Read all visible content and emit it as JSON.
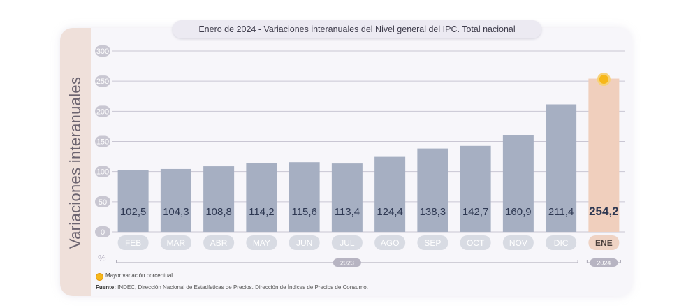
{
  "title": "Enero de 2024 - Variaciones interanuales del Nivel general del IPC. Total nacional",
  "y_axis_label": "Variaciones interanuales",
  "unit_symbol": "%",
  "legend_label": "Mayor variación porcentual",
  "source_label": "Fuente:",
  "source_text": "INDEC, Dirección Nacional de Estadísticas de Precios. Dirección de Índices de Precios de Consumo.",
  "colors": {
    "bar": "#a6afc2",
    "highlight_bar": "#f0cfbd",
    "highlight_dot": "#f6b71a",
    "pill": "#d8dbe3",
    "highlight_pill": "#efd3c4",
    "value_text": "#2e3852"
  },
  "chart_data": {
    "type": "bar",
    "categories": [
      "FEB",
      "MAR",
      "ABR",
      "MAY",
      "JUN",
      "JUL",
      "AGO",
      "SEP",
      "OCT",
      "NOV",
      "DIC",
      "ENE"
    ],
    "values": [
      102.5,
      104.3,
      108.8,
      114.2,
      115.6,
      113.4,
      124.4,
      138.3,
      142.7,
      160.9,
      211.4,
      254.2
    ],
    "value_labels": [
      "102,5",
      "104,3",
      "108,8",
      "114,2",
      "115,6",
      "113,4",
      "124,4",
      "138,3",
      "142,7",
      "160,9",
      "211,4",
      "254,2"
    ],
    "highlight_index": 11,
    "ylim": [
      0,
      300
    ],
    "yticks": [
      0,
      50,
      100,
      150,
      200,
      250,
      300
    ],
    "year_groups": [
      {
        "label": "2023",
        "start": 0,
        "end": 10
      },
      {
        "label": "2024",
        "start": 11,
        "end": 11
      }
    ],
    "grid": true
  }
}
